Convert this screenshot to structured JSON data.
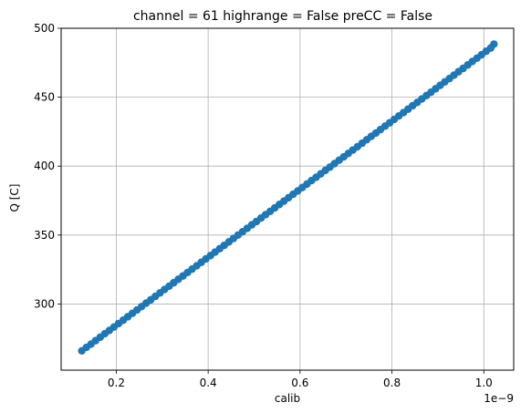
{
  "chart_data": {
    "type": "scatter",
    "title": "channel = 61 highrange = False preCC = False",
    "xlabel": "calib",
    "ylabel": "Q [C]",
    "x_offset_label": "1e−9",
    "x_scale": 1e-09,
    "xlim": [
      0.08,
      1.065
    ],
    "ylim": [
      252,
      500
    ],
    "xticks": [
      0.2,
      0.4,
      0.6,
      0.8,
      1.0
    ],
    "xtick_labels": [
      "0.2",
      "0.4",
      "0.6",
      "0.8",
      "1.0"
    ],
    "yticks": [
      300,
      350,
      400,
      450,
      500
    ],
    "ytick_labels": [
      "300",
      "350",
      "400",
      "450",
      "500"
    ],
    "grid": true,
    "marker_color": "#1f77b4",
    "series": [
      {
        "x": [
          0.125,
          0.135,
          0.145,
          0.155,
          0.165,
          0.175,
          0.185,
          0.195,
          0.205,
          0.215,
          0.225,
          0.235,
          0.245,
          0.255,
          0.265,
          0.275,
          0.285,
          0.295,
          0.305,
          0.315,
          0.325,
          0.335,
          0.345,
          0.355,
          0.365,
          0.375,
          0.385,
          0.395,
          0.405,
          0.415,
          0.425,
          0.435,
          0.445,
          0.455,
          0.465,
          0.475,
          0.485,
          0.495,
          0.505,
          0.515,
          0.525,
          0.535,
          0.545,
          0.555,
          0.565,
          0.575,
          0.585,
          0.595,
          0.605,
          0.615,
          0.625,
          0.635,
          0.645,
          0.655,
          0.665,
          0.675,
          0.685,
          0.695,
          0.705,
          0.715,
          0.725,
          0.735,
          0.745,
          0.755,
          0.765,
          0.775,
          0.785,
          0.795,
          0.805,
          0.815,
          0.825,
          0.835,
          0.845,
          0.855,
          0.865,
          0.875,
          0.885,
          0.895,
          0.905,
          0.915,
          0.925,
          0.935,
          0.945,
          0.955,
          0.965,
          0.975,
          0.985,
          0.995,
          1.005,
          1.015,
          1.022
        ],
        "y": [
          266.0,
          268.5,
          270.9,
          273.4,
          275.9,
          278.4,
          280.8,
          283.3,
          285.8,
          288.2,
          290.7,
          293.2,
          295.6,
          298.1,
          300.6,
          303.0,
          305.5,
          308.0,
          310.5,
          312.9,
          315.4,
          317.9,
          320.3,
          322.8,
          325.3,
          327.7,
          330.2,
          332.7,
          335.1,
          337.6,
          340.1,
          342.5,
          345.0,
          347.5,
          350.0,
          352.4,
          354.9,
          357.4,
          359.8,
          362.3,
          364.8,
          367.2,
          369.7,
          372.2,
          374.6,
          377.1,
          379.6,
          382.0,
          384.5,
          387.0,
          389.5,
          391.9,
          394.4,
          396.9,
          399.3,
          401.8,
          404.3,
          406.7,
          409.2,
          411.7,
          414.1,
          416.6,
          419.1,
          421.6,
          424.0,
          426.5,
          429.0,
          431.4,
          433.9,
          436.4,
          438.8,
          441.3,
          443.8,
          446.2,
          448.7,
          451.2,
          453.6,
          456.1,
          458.6,
          461.1,
          463.5,
          466.0,
          468.5,
          470.9,
          473.4,
          475.9,
          478.3,
          480.8,
          483.3,
          485.7,
          488.5
        ]
      }
    ]
  }
}
